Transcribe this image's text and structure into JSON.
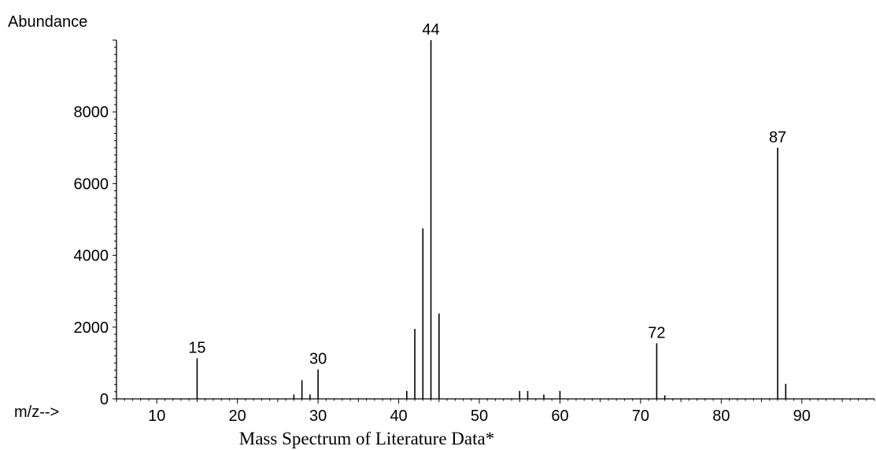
{
  "chart_data": {
    "type": "bar",
    "title": "",
    "caption": "Mass Spectrum of Literature Data*",
    "ylabel": "Abundance",
    "xlabel": "m/z-->",
    "xlim": [
      5,
      99
    ],
    "ylim": [
      0,
      10000
    ],
    "xticks": [
      10,
      20,
      30,
      40,
      50,
      60,
      70,
      80,
      90
    ],
    "yticks": [
      0,
      2000,
      4000,
      6000,
      8000
    ],
    "grid": false,
    "series": [
      {
        "x": [
          15,
          27,
          28,
          29,
          30,
          41,
          42,
          43,
          44,
          45,
          55,
          56,
          58,
          60,
          72,
          73,
          87,
          88
        ],
        "values": [
          1130,
          120,
          520,
          120,
          820,
          220,
          1950,
          4750,
          10000,
          2380,
          220,
          220,
          120,
          220,
          1550,
          100,
          7000,
          420
        ]
      }
    ],
    "peak_labels": [
      {
        "x": 15,
        "label": "15"
      },
      {
        "x": 30,
        "label": "30"
      },
      {
        "x": 44,
        "label": "44"
      },
      {
        "x": 72,
        "label": "72"
      },
      {
        "x": 87,
        "label": "87"
      }
    ]
  }
}
